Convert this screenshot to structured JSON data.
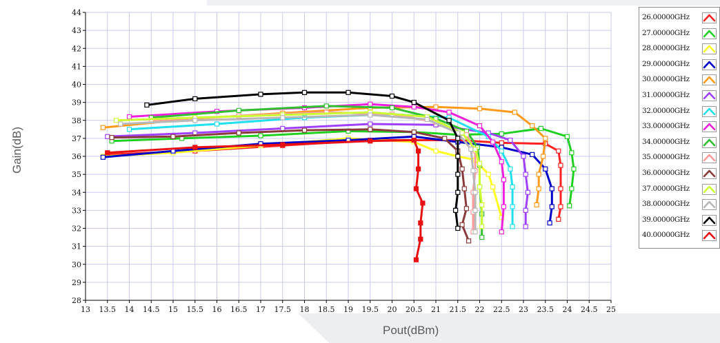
{
  "chart_data": {
    "type": "line",
    "xlabel": "Pout(dBm)",
    "ylabel": "Gain(dB)",
    "xlim": [
      13,
      25
    ],
    "ylim": [
      28,
      44
    ],
    "xticks": [
      13,
      13.5,
      14,
      14.5,
      15,
      15.5,
      16,
      16.5,
      17,
      17.5,
      18,
      18.5,
      19,
      19.5,
      20,
      20.5,
      21,
      21.5,
      22,
      22.5,
      23,
      23.5,
      24,
      24.5,
      25
    ],
    "yticks": [
      28,
      29,
      30,
      31,
      32,
      33,
      34,
      35,
      36,
      37,
      38,
      39,
      40,
      41,
      42,
      43,
      44
    ],
    "grid": true,
    "legend_position": "right",
    "series": [
      {
        "name": "26.00000GHz",
        "color": "#ff2020",
        "points": [
          [
            13.5,
            36.1
          ],
          [
            15.5,
            36.3
          ],
          [
            17.5,
            36.6
          ],
          [
            19.5,
            36.9
          ],
          [
            21.5,
            36.9
          ],
          [
            22.5,
            36.75
          ],
          [
            23.5,
            36.7
          ],
          [
            23.8,
            36.3
          ],
          [
            23.85,
            35.5
          ],
          [
            23.85,
            34.2
          ],
          [
            23.85,
            33.2
          ],
          [
            23.8,
            32.5
          ]
        ]
      },
      {
        "name": "27.00000GHz",
        "color": "#20d020",
        "points": [
          [
            13.6,
            36.85
          ],
          [
            15.2,
            37.0
          ],
          [
            17.0,
            37.15
          ],
          [
            19.0,
            37.4
          ],
          [
            20.5,
            37.35
          ],
          [
            21.5,
            37.2
          ],
          [
            22.5,
            37.25
          ],
          [
            23.4,
            37.55
          ],
          [
            24.0,
            37.1
          ],
          [
            24.1,
            36.2
          ],
          [
            24.15,
            35.3
          ],
          [
            24.1,
            34.2
          ],
          [
            24.05,
            33.25
          ]
        ]
      },
      {
        "name": "28.00000GHz",
        "color": "#ffff20",
        "points": [
          [
            13.4,
            36.0
          ],
          [
            15.0,
            36.2
          ],
          [
            17.0,
            36.6
          ],
          [
            19.0,
            37.0
          ],
          [
            20.5,
            36.8
          ],
          [
            21.0,
            36.3
          ],
          [
            21.5,
            36.0
          ],
          [
            21.9,
            35.8
          ],
          [
            22.2,
            35.0
          ],
          [
            22.3,
            34.3
          ],
          [
            22.5,
            32.6
          ]
        ]
      },
      {
        "name": "29.00000GHz",
        "color": "#0000c8",
        "points": [
          [
            13.4,
            35.95
          ],
          [
            15.0,
            36.3
          ],
          [
            17.0,
            36.7
          ],
          [
            19.0,
            36.9
          ],
          [
            20.5,
            37.1
          ],
          [
            21.5,
            36.8
          ],
          [
            22.5,
            36.5
          ],
          [
            23.2,
            36.1
          ],
          [
            23.5,
            35.3
          ],
          [
            23.65,
            34.2
          ],
          [
            23.65,
            33.2
          ],
          [
            23.6,
            32.3
          ]
        ]
      },
      {
        "name": "30.00000GHz",
        "color": "#ff9a1a",
        "points": [
          [
            13.4,
            37.6
          ],
          [
            15.5,
            38.1
          ],
          [
            17.5,
            38.4
          ],
          [
            19.5,
            38.7
          ],
          [
            21.0,
            38.75
          ],
          [
            22.0,
            38.65
          ],
          [
            22.8,
            38.45
          ],
          [
            23.2,
            37.7
          ],
          [
            23.5,
            37.0
          ],
          [
            23.45,
            36.0
          ],
          [
            23.35,
            35.0
          ],
          [
            23.35,
            34.2
          ],
          [
            23.3,
            33.3
          ]
        ]
      },
      {
        "name": "31.00000GHz",
        "color": "#a040ff",
        "points": [
          [
            13.5,
            37.1
          ],
          [
            15.5,
            37.3
          ],
          [
            17.5,
            37.55
          ],
          [
            19.5,
            37.8
          ],
          [
            21.0,
            37.75
          ],
          [
            22.2,
            37.3
          ],
          [
            22.7,
            36.9
          ],
          [
            23.0,
            36.0
          ],
          [
            23.05,
            35.0
          ],
          [
            23.1,
            34.0
          ],
          [
            23.05,
            33.0
          ],
          [
            23.05,
            32.1
          ]
        ]
      },
      {
        "name": "32.00000GHz",
        "color": "#20e0f0",
        "points": [
          [
            14.0,
            37.5
          ],
          [
            16.0,
            37.8
          ],
          [
            18.0,
            38.15
          ],
          [
            20.0,
            38.35
          ],
          [
            21.3,
            38.15
          ],
          [
            22.2,
            37.1
          ],
          [
            22.5,
            36.3
          ],
          [
            22.7,
            35.3
          ],
          [
            22.75,
            34.3
          ],
          [
            22.75,
            33.2
          ],
          [
            22.75,
            32.1
          ]
        ]
      },
      {
        "name": "33.00000GHz",
        "color": "#ee20dd",
        "points": [
          [
            14.0,
            38.2
          ],
          [
            16.0,
            38.5
          ],
          [
            18.0,
            38.7
          ],
          [
            19.5,
            38.9
          ],
          [
            20.5,
            38.75
          ],
          [
            21.3,
            38.45
          ],
          [
            22.0,
            37.7
          ],
          [
            22.3,
            36.8
          ],
          [
            22.5,
            35.7
          ],
          [
            22.55,
            34.7
          ],
          [
            22.55,
            33.2
          ],
          [
            22.5,
            31.8
          ]
        ]
      },
      {
        "name": "34.00000GHz",
        "color": "#30c030",
        "points": [
          [
            14.5,
            38.15
          ],
          [
            16.5,
            38.55
          ],
          [
            18.5,
            38.8
          ],
          [
            20.0,
            38.7
          ],
          [
            21.0,
            38.1
          ],
          [
            21.7,
            37.4
          ],
          [
            21.95,
            36.5
          ],
          [
            22.0,
            35.5
          ],
          [
            22.0,
            34.3
          ],
          [
            22.05,
            32.8
          ],
          [
            22.05,
            31.5
          ]
        ]
      },
      {
        "name": "35.00000GHz",
        "color": "#ff9a9a",
        "points": [
          [
            14.5,
            38.0
          ],
          [
            16.5,
            38.25
          ],
          [
            18.5,
            38.45
          ],
          [
            20.0,
            38.35
          ],
          [
            21.0,
            37.9
          ],
          [
            21.7,
            37.2
          ],
          [
            21.9,
            36.3
          ],
          [
            21.9,
            35.2
          ],
          [
            21.85,
            34.0
          ],
          [
            21.85,
            32.9
          ],
          [
            21.85,
            31.8
          ]
        ]
      },
      {
        "name": "36.00000GHz",
        "color": "#8b3a3a",
        "points": [
          [
            13.6,
            37.05
          ],
          [
            15.0,
            37.1
          ],
          [
            16.5,
            37.3
          ],
          [
            18.0,
            37.45
          ],
          [
            19.5,
            37.5
          ],
          [
            20.5,
            37.35
          ],
          [
            21.2,
            37.0
          ],
          [
            21.5,
            36.3
          ],
          [
            21.6,
            35.3
          ],
          [
            21.65,
            34.2
          ],
          [
            21.7,
            33.1
          ],
          [
            21.6,
            32.2
          ],
          [
            21.75,
            31.3
          ]
        ]
      },
      {
        "name": "37.00000GHz",
        "color": "#ccff33",
        "points": [
          [
            13.7,
            38.0
          ],
          [
            15.5,
            38.15
          ],
          [
            17.5,
            38.3
          ],
          [
            19.5,
            38.45
          ],
          [
            20.8,
            38.2
          ],
          [
            21.6,
            37.3
          ],
          [
            21.9,
            36.4
          ],
          [
            22.0,
            35.6
          ],
          [
            22.0,
            34.3
          ],
          [
            22.05,
            33.3
          ],
          [
            22.05,
            32.1
          ]
        ]
      },
      {
        "name": "38.00000GHz",
        "color": "#b8b8b8",
        "points": [
          [
            13.8,
            37.8
          ],
          [
            15.5,
            38.0
          ],
          [
            17.5,
            38.15
          ],
          [
            19.5,
            38.3
          ],
          [
            20.8,
            38.05
          ],
          [
            21.5,
            37.3
          ],
          [
            21.8,
            36.4
          ],
          [
            21.85,
            35.2
          ],
          [
            21.9,
            34.0
          ],
          [
            21.9,
            33.0
          ],
          [
            21.9,
            31.8
          ]
        ]
      },
      {
        "name": "39.00000GHz",
        "color": "#000000",
        "points": [
          [
            14.4,
            38.85
          ],
          [
            15.5,
            39.2
          ],
          [
            17.0,
            39.45
          ],
          [
            18.0,
            39.55
          ],
          [
            19.0,
            39.55
          ],
          [
            20.0,
            39.35
          ],
          [
            20.5,
            39.0
          ],
          [
            21.3,
            38.0
          ],
          [
            21.5,
            37.0
          ],
          [
            21.5,
            36.0
          ],
          [
            21.5,
            35.0
          ],
          [
            21.5,
            34.0
          ],
          [
            21.45,
            33.0
          ],
          [
            21.5,
            32.0
          ]
        ]
      },
      {
        "name": "40.00000GHz",
        "color": "#e81010",
        "points": [
          [
            13.5,
            36.2
          ],
          [
            15.5,
            36.5
          ],
          [
            17.5,
            36.65
          ],
          [
            19.5,
            36.85
          ],
          [
            20.5,
            36.9
          ],
          [
            20.6,
            36.3
          ],
          [
            20.6,
            35.3
          ],
          [
            20.55,
            34.2
          ],
          [
            20.7,
            33.4
          ],
          [
            20.65,
            32.3
          ],
          [
            20.65,
            31.4
          ],
          [
            20.55,
            30.25
          ]
        ]
      }
    ]
  }
}
